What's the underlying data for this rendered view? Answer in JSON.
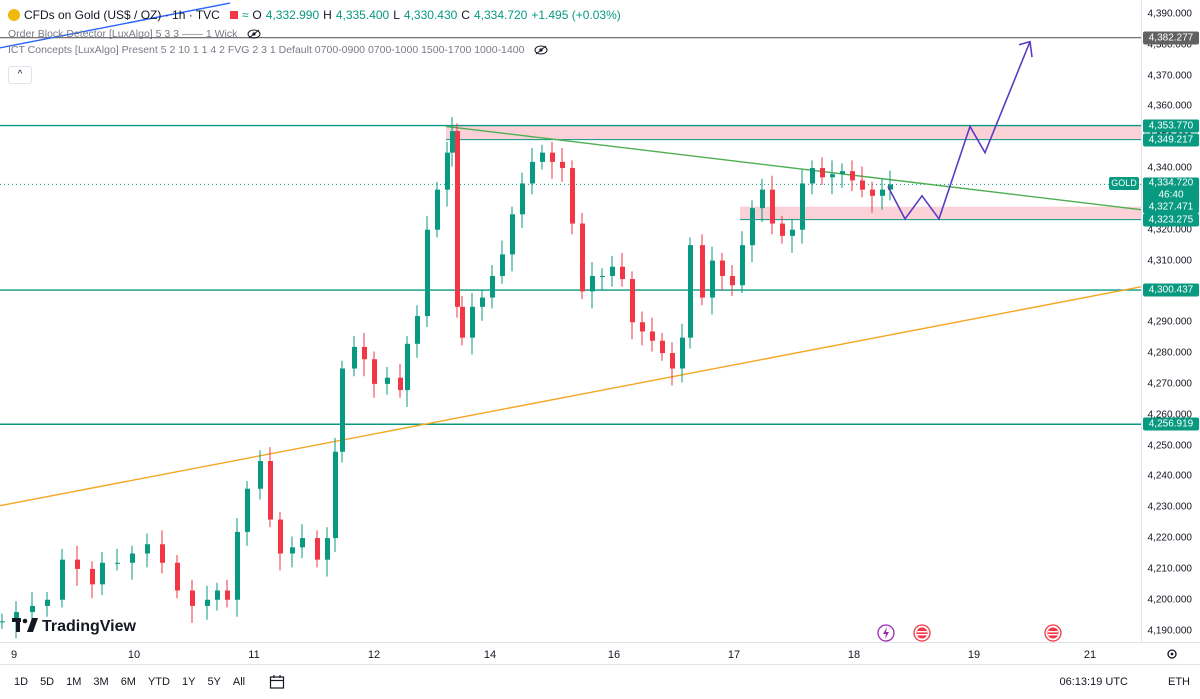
{
  "legend": {
    "symbol": "CFDs on Gold (US$ / OZ) · 1h · TVC",
    "open_label": "O",
    "open": "4,332.990",
    "high_label": "H",
    "high": "4,335.400",
    "low_label": "L",
    "low": "4,330.430",
    "close_label": "C",
    "close": "4,334.720",
    "change": "+1.495 (+0.03%)",
    "indicator1": "Order Block Detector [LuxAlgo] 5 3 3 —— 1 Wick",
    "indicator2": "ICT Concepts [LuxAlgo] Present 5 2 10 1 1 4 2 FVG 2 3 1 Default 0700-0900 0700-1000 1500-1700 1000-1400"
  },
  "collapse_label": "^",
  "price_axis": {
    "ticks": [
      "4,390.000",
      "4,380.000",
      "4,370.000",
      "4,360.000",
      "4,350.000",
      "4,340.000",
      "4,330.000",
      "4,320.000",
      "4,310.000",
      "4,300.000",
      "4,290.000",
      "4,280.000",
      "4,270.000",
      "4,260.000",
      "4,250.000",
      "4,240.000",
      "4,230.000",
      "4,220.000",
      "4,210.000",
      "4,200.000",
      "4,190.000"
    ],
    "ticks_values": [
      4390,
      4380,
      4370,
      4360,
      4350,
      4340,
      4330,
      4320,
      4310,
      4300,
      4290,
      4280,
      4270,
      4260,
      4250,
      4240,
      4230,
      4220,
      4210,
      4200,
      4190
    ],
    "min": 4186.3,
    "max": 4394.5,
    "labels": [
      {
        "text": "4,382.277",
        "value": 4382.277,
        "color": "#616161"
      },
      {
        "text": "4,353.796",
        "value": 4353.796,
        "color": "#089981"
      },
      {
        "text": "4,353.770",
        "value": 4353.77,
        "color": "#089981"
      },
      {
        "text": "4,349.217",
        "value": 4349.217,
        "color": "#089981"
      },
      {
        "text": "4,327.471",
        "value": 4327.471,
        "color": "#089981"
      },
      {
        "text": "4,323.275",
        "value": 4323.275,
        "color": "#089981"
      },
      {
        "text": "4,300.437",
        "value": 4300.437,
        "color": "#089981"
      },
      {
        "text": "4,256.919",
        "value": 4256.919,
        "color": "#089981"
      }
    ],
    "current": {
      "symbol": "GOLD",
      "price": "4,334.720",
      "countdown": "46:40",
      "value": 4334.72,
      "color": "#089981"
    }
  },
  "time_axis": [
    "9",
    "10",
    "11",
    "12",
    "14",
    "16",
    "17",
    "18",
    "19",
    "21"
  ],
  "bottom_bar": {
    "ranges": [
      "1D",
      "5D",
      "1M",
      "3M",
      "6M",
      "YTD",
      "1Y",
      "5Y",
      "All"
    ],
    "clock": "06:13:19 UTC",
    "session": "ETH"
  },
  "logo_text": "TradingView",
  "colors": {
    "up": "#089981",
    "down": "#f23645",
    "support": "#089981",
    "trend": "#f5a623",
    "projection": "#5b3cc4",
    "zone": "#f7c6cc"
  }
}
